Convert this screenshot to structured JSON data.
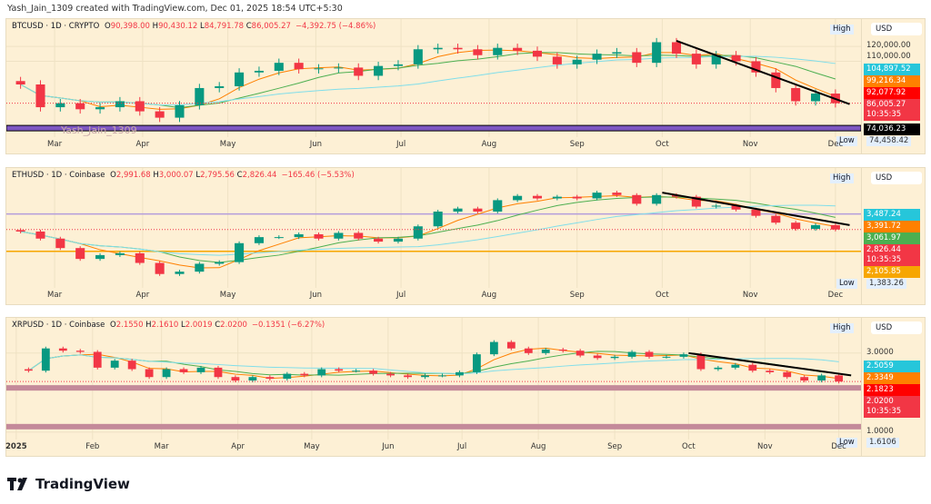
{
  "credit": "Yash_Jain_1309 created with TradingView.com, Dec 01, 2025 18:54 UTC+5:30",
  "footer": {
    "brand": "TradingView",
    "logo_icon": "tradingview-logo-icon"
  },
  "colors": {
    "up": "#089981",
    "down": "#f23645",
    "background": "#fdf0d5",
    "trendline": "#000000"
  },
  "chart_data": [
    {
      "type": "candlestick",
      "symbol": "BTCUSD · 1D · CRYPTO",
      "o": "90,398.00",
      "h": "90,430.12",
      "l": "84,791.78",
      "c": "86,005.27",
      "chg": "−4,392.75 (−4.86%)",
      "currency": "USD",
      "high_label": "High",
      "low_label": "Low",
      "scale": "log",
      "ylim": [
        72000,
        128000
      ],
      "xlim": [
        "2025-02-12",
        "2025-12-10"
      ],
      "x_ticks": [
        [
          "2025-03-01",
          "Mar"
        ],
        [
          "2025-04-01",
          "Apr"
        ],
        [
          "2025-05-01",
          "May"
        ],
        [
          "2025-06-01",
          "Jun"
        ],
        [
          "2025-07-01",
          "Jul"
        ],
        [
          "2025-08-01",
          "Aug"
        ],
        [
          "2025-09-01",
          "Sep"
        ],
        [
          "2025-10-01",
          "Oct"
        ],
        [
          "2025-11-01",
          "Nov"
        ],
        [
          "2025-12-01",
          "Dec"
        ]
      ],
      "y_ticks": [
        [
          "120000",
          "120,000.00"
        ],
        [
          "110000",
          "110,000.00"
        ]
      ],
      "dates": [
        "2025-02-17",
        "2025-02-24",
        "2025-03-03",
        "2025-03-10",
        "2025-03-17",
        "2025-03-24",
        "2025-03-31",
        "2025-04-07",
        "2025-04-14",
        "2025-04-21",
        "2025-04-28",
        "2025-05-05",
        "2025-05-12",
        "2025-05-19",
        "2025-05-26",
        "2025-06-02",
        "2025-06-09",
        "2025-06-16",
        "2025-06-23",
        "2025-06-30",
        "2025-07-07",
        "2025-07-14",
        "2025-07-21",
        "2025-07-28",
        "2025-08-04",
        "2025-08-11",
        "2025-08-18",
        "2025-08-25",
        "2025-09-01",
        "2025-09-08",
        "2025-09-15",
        "2025-09-22",
        "2025-09-29",
        "2025-10-06",
        "2025-10-13",
        "2025-10-20",
        "2025-10-27",
        "2025-11-03",
        "2025-11-10",
        "2025-11-17",
        "2025-11-24",
        "2025-12-01"
      ],
      "close": [
        96000,
        84000,
        86000,
        83000,
        84000,
        87000,
        82000,
        79000,
        85000,
        94000,
        95000,
        103000,
        104000,
        109000,
        105000,
        105500,
        106000,
        101000,
        107000,
        108000,
        118000,
        119000,
        118000,
        114000,
        119000,
        117000,
        113000,
        108000,
        111000,
        115000,
        116000,
        109000,
        123000,
        115000,
        108000,
        114000,
        110000,
        103000,
        94000,
        87000,
        91000,
        86005
      ],
      "badges": [
        [
          "104897.52",
          "104,897.52",
          "#26c6da",
          ""
        ],
        [
          "99216.34",
          "99,216.34",
          "#ff8000",
          ""
        ],
        [
          "92077.92",
          "92,077.92",
          "#ff0000",
          ""
        ],
        [
          "86005.27",
          "86,005.27",
          "#f23645",
          "10:35:35"
        ],
        [
          "74036.23",
          "74,036.23",
          "#000000",
          ""
        ]
      ],
      "low_value": "74,458.42",
      "levels": [
        {
          "price": 74300,
          "color": "#7e57c2",
          "kind": "band"
        }
      ],
      "trendline": [
        [
          "2025-10-06",
          124000
        ],
        [
          "2025-12-06",
          85500
        ]
      ],
      "watermark": "Yash_Jain_1309"
    },
    {
      "type": "candlestick",
      "symbol": "ETHUSD · 1D · Coinbase",
      "o": "2,991.68",
      "h": "3,000.07",
      "l": "2,795.56",
      "c": "2,826.44",
      "chg": "−165.46 (−5.53%)",
      "currency": "USD",
      "high_label": "High",
      "low_label": "Low",
      "scale": "log",
      "ylim": [
        1350,
        5200
      ],
      "xlim": [
        "2025-02-12",
        "2025-12-10"
      ],
      "x_ticks": [
        [
          "2025-03-01",
          "Mar"
        ],
        [
          "2025-04-01",
          "Apr"
        ],
        [
          "2025-05-01",
          "May"
        ],
        [
          "2025-06-01",
          "Jun"
        ],
        [
          "2025-07-01",
          "Jul"
        ],
        [
          "2025-08-01",
          "Aug"
        ],
        [
          "2025-09-01",
          "Sep"
        ],
        [
          "2025-10-01",
          "Oct"
        ],
        [
          "2025-11-01",
          "Nov"
        ],
        [
          "2025-12-01",
          "Dec"
        ]
      ],
      "y_ticks": [],
      "dates": [
        "2025-02-17",
        "2025-02-24",
        "2025-03-03",
        "2025-03-10",
        "2025-03-17",
        "2025-03-24",
        "2025-03-31",
        "2025-04-07",
        "2025-04-14",
        "2025-04-21",
        "2025-04-28",
        "2025-05-05",
        "2025-05-12",
        "2025-05-19",
        "2025-05-26",
        "2025-06-02",
        "2025-06-09",
        "2025-06-16",
        "2025-06-23",
        "2025-06-30",
        "2025-07-07",
        "2025-07-14",
        "2025-07-21",
        "2025-07-28",
        "2025-08-04",
        "2025-08-11",
        "2025-08-18",
        "2025-08-25",
        "2025-09-01",
        "2025-09-08",
        "2025-09-15",
        "2025-09-22",
        "2025-09-29",
        "2025-10-06",
        "2025-10-13",
        "2025-10-20",
        "2025-10-27",
        "2025-11-03",
        "2025-11-10",
        "2025-11-17",
        "2025-11-24",
        "2025-12-01"
      ],
      "close": [
        2750,
        2500,
        2200,
        1900,
        2000,
        2050,
        1800,
        1550,
        1600,
        1780,
        1820,
        2350,
        2550,
        2550,
        2650,
        2500,
        2700,
        2500,
        2400,
        2500,
        2950,
        3600,
        3750,
        3600,
        4200,
        4450,
        4300,
        4400,
        4300,
        4650,
        4500,
        4000,
        4500,
        4400,
        3850,
        3900,
        3700,
        3400,
        3100,
        2850,
        3000,
        2826.44
      ],
      "badges": [
        [
          "3487.24",
          "3,487.24",
          "#26c6da",
          ""
        ],
        [
          "3391.72",
          "3,391.72",
          "#ff8000",
          ""
        ],
        [
          "3061.97",
          "3,061.97",
          "#4caf50",
          ""
        ],
        [
          "2826.44",
          "2,826.44",
          "#f23645",
          "10:35:35"
        ],
        [
          "2105.85",
          "2,105.85",
          "#f7a600",
          ""
        ]
      ],
      "low_value": "1,383.26",
      "levels": [
        {
          "price": 3487.24,
          "color": "#b39ddb",
          "kind": "line"
        },
        {
          "price": 2105.85,
          "color": "#f7a600",
          "kind": "line"
        }
      ],
      "trendline": [
        [
          "2025-10-01",
          4650
        ],
        [
          "2025-12-06",
          3000
        ]
      ]
    },
    {
      "type": "candlestick",
      "symbol": "XRPUSD · 1D · Coinbase",
      "o": "2.1550",
      "h": "2.1610",
      "l": "2.0019",
      "c": "2.0200",
      "chg": "−0.1351 (−6.27%)",
      "currency": "USD",
      "high_label": "High",
      "low_label": "Low",
      "scale": "log",
      "ylim": [
        0.95,
        3.9
      ],
      "xlim": [
        "2024-12-28",
        "2025-12-10"
      ],
      "x_ticks": [
        [
          "2025-01-01",
          "2025"
        ],
        [
          "2025-02-01",
          "Feb"
        ],
        [
          "2025-03-01",
          "Mar"
        ],
        [
          "2025-04-01",
          "Apr"
        ],
        [
          "2025-05-01",
          "May"
        ],
        [
          "2025-06-01",
          "Jun"
        ],
        [
          "2025-07-01",
          "Jul"
        ],
        [
          "2025-08-01",
          "Aug"
        ],
        [
          "2025-09-01",
          "Sep"
        ],
        [
          "2025-10-01",
          "Oct"
        ],
        [
          "2025-11-01",
          "Nov"
        ],
        [
          "2025-12-01",
          "Dec"
        ]
      ],
      "y_ticks": [
        [
          "3",
          "3.0000"
        ],
        [
          "1",
          "1.0000"
        ]
      ],
      "dates": [
        "2025-01-06",
        "2025-01-13",
        "2025-01-20",
        "2025-01-27",
        "2025-02-03",
        "2025-02-10",
        "2025-02-17",
        "2025-02-24",
        "2025-03-03",
        "2025-03-10",
        "2025-03-17",
        "2025-03-24",
        "2025-03-31",
        "2025-04-07",
        "2025-04-14",
        "2025-04-21",
        "2025-04-28",
        "2025-05-05",
        "2025-05-12",
        "2025-05-19",
        "2025-05-26",
        "2025-06-02",
        "2025-06-09",
        "2025-06-16",
        "2025-06-23",
        "2025-06-30",
        "2025-07-07",
        "2025-07-14",
        "2025-07-21",
        "2025-07-28",
        "2025-08-04",
        "2025-08-11",
        "2025-08-18",
        "2025-08-25",
        "2025-09-01",
        "2025-09-08",
        "2025-09-15",
        "2025-09-22",
        "2025-09-29",
        "2025-10-06",
        "2025-10-13",
        "2025-10-20",
        "2025-10-27",
        "2025-11-03",
        "2025-11-10",
        "2025-11-17",
        "2025-11-24",
        "2025-12-01"
      ],
      "close": [
        2.35,
        3.2,
        3.1,
        3.05,
        2.45,
        2.7,
        2.4,
        2.15,
        2.4,
        2.3,
        2.45,
        2.15,
        2.05,
        2.15,
        2.1,
        2.25,
        2.2,
        2.4,
        2.35,
        2.35,
        2.25,
        2.2,
        2.15,
        2.2,
        2.2,
        2.3,
        2.95,
        3.5,
        3.2,
        3.0,
        3.15,
        3.1,
        2.9,
        2.8,
        2.85,
        3.05,
        2.85,
        2.85,
        2.95,
        2.4,
        2.45,
        2.55,
        2.35,
        2.3,
        2.15,
        2.05,
        2.2,
        2.02
      ],
      "badges": [
        [
          "2.5059",
          "2.5059",
          "#26c6da",
          ""
        ],
        [
          "2.3349",
          "2.3349",
          "#ff8000",
          ""
        ],
        [
          "2.1823",
          "2.1823",
          "#ff0000",
          ""
        ],
        [
          "2.0200",
          "2.0200",
          "#f23645",
          "10:35:35"
        ]
      ],
      "low_value": "1.6106",
      "levels": [
        {
          "price": 1.85,
          "color": "#c48a9a",
          "kind": "band"
        },
        {
          "price": 1.08,
          "color": "#c48a9a",
          "kind": "band"
        }
      ],
      "trendline": [
        [
          "2025-10-01",
          3.0
        ],
        [
          "2025-12-06",
          2.2
        ]
      ]
    }
  ]
}
